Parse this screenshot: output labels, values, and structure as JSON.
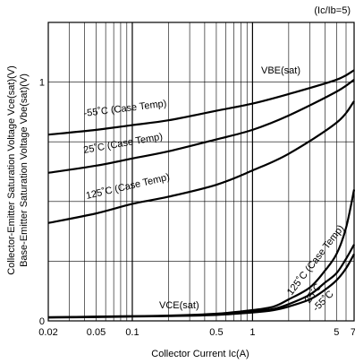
{
  "chart_data": {
    "type": "line",
    "note": "(Ic/Ib=5)",
    "xlabel": "Collector Current Ic(A)",
    "ylabel_line1": "Collector-Emitter Saturation Voltage Vce(sat)(V)",
    "ylabel_line2": "Base-Emitter Saturation Voltage Vbe(sat)(V)",
    "x_scale": "log",
    "xlim": [
      0.02,
      7
    ],
    "ylim": [
      0,
      1.25
    ],
    "grid": true,
    "x_ticks": [
      {
        "value": 0.02,
        "label": "0.02"
      },
      {
        "value": 0.05,
        "label": "0.05"
      },
      {
        "value": 0.1,
        "label": "0.1"
      },
      {
        "value": 0.5,
        "label": "0.5"
      },
      {
        "value": 1,
        "label": "1"
      },
      {
        "value": 5,
        "label": "5"
      },
      {
        "value": 7,
        "label": "7"
      }
    ],
    "x_minor_grid": [
      0.03,
      0.04,
      0.05,
      0.06,
      0.07,
      0.08,
      0.09,
      0.2,
      0.3,
      0.4,
      0.5,
      0.6,
      0.7,
      0.8,
      0.9,
      2,
      3,
      4,
      5,
      6,
      7
    ],
    "x_major_grid": [
      0.1,
      1
    ],
    "y_ticks": [
      {
        "value": 0,
        "label": "0"
      },
      {
        "value": 1,
        "label": "1"
      }
    ],
    "y_grid": [
      0.25,
      0.5,
      0.75,
      1.0
    ],
    "group_labels": {
      "vbe": "VBE(sat)",
      "vce": "VCE(sat)"
    },
    "series": [
      {
        "name": "-55˚C (Case Temp)",
        "group": "vbe",
        "x": [
          0.02,
          0.05,
          0.1,
          0.2,
          0.5,
          1,
          2,
          5,
          7
        ],
        "y": [
          0.78,
          0.8,
          0.82,
          0.84,
          0.88,
          0.91,
          0.95,
          1.01,
          1.05
        ]
      },
      {
        "name": "25˚C (Case Temp)",
        "group": "vbe",
        "x": [
          0.02,
          0.05,
          0.1,
          0.2,
          0.5,
          1,
          2,
          5,
          7
        ],
        "y": [
          0.62,
          0.65,
          0.68,
          0.71,
          0.76,
          0.8,
          0.86,
          0.96,
          1.01
        ]
      },
      {
        "name": "125˚C (Case Temp)",
        "group": "vbe",
        "x": [
          0.02,
          0.05,
          0.1,
          0.2,
          0.5,
          1,
          2,
          5,
          7
        ],
        "y": [
          0.41,
          0.45,
          0.49,
          0.52,
          0.57,
          0.63,
          0.7,
          0.83,
          0.92
        ]
      },
      {
        "name": "125˚C (Case Temp)",
        "group": "vce",
        "x": [
          0.02,
          0.05,
          0.1,
          0.2,
          0.5,
          1,
          1.5,
          2,
          3,
          4,
          5,
          6,
          7
        ],
        "y": [
          0.015,
          0.018,
          0.02,
          0.022,
          0.03,
          0.045,
          0.06,
          0.09,
          0.14,
          0.21,
          0.28,
          0.39,
          0.55
        ]
      },
      {
        "name": "25˚C",
        "group": "vce",
        "x": [
          0.02,
          0.05,
          0.1,
          0.2,
          0.5,
          1,
          1.5,
          2,
          3,
          4,
          5,
          6,
          7
        ],
        "y": [
          0.015,
          0.017,
          0.019,
          0.021,
          0.028,
          0.04,
          0.05,
          0.07,
          0.11,
          0.16,
          0.2,
          0.26,
          0.32
        ]
      },
      {
        "name": "-55˚C",
        "group": "vce",
        "x": [
          0.02,
          0.05,
          0.1,
          0.2,
          0.5,
          1,
          1.5,
          2,
          3,
          4,
          5,
          6,
          7
        ],
        "y": [
          0.014,
          0.016,
          0.018,
          0.02,
          0.025,
          0.035,
          0.045,
          0.06,
          0.09,
          0.13,
          0.17,
          0.22,
          0.28
        ]
      }
    ]
  }
}
